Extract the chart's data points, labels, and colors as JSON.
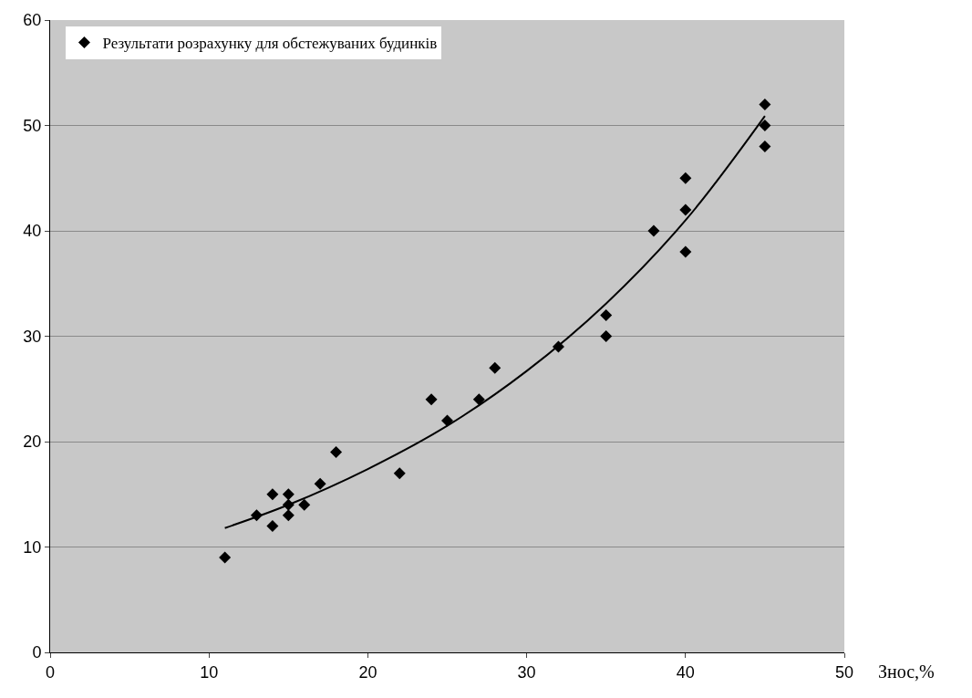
{
  "chart_data": {
    "type": "scatter",
    "xlabel": "Знос,%",
    "xlim": [
      0,
      50
    ],
    "xticks": [
      0,
      10,
      20,
      30,
      40,
      50
    ],
    "ylim": [
      0,
      60
    ],
    "yticks": [
      0,
      10,
      20,
      30,
      40,
      50,
      60
    ],
    "grid": "y",
    "legend": "top left",
    "marker": "diamond",
    "series": [
      {
        "name": "Результати розрахунку для обстежуваних будинків",
        "color": "#000000",
        "x": [
          11,
          13,
          14,
          14,
          15,
          15,
          15,
          16,
          17,
          18,
          22,
          24,
          25,
          27,
          28,
          32,
          35,
          35,
          38,
          40,
          40,
          40,
          45,
          45,
          45
        ],
        "values": [
          9,
          13,
          15,
          12,
          15,
          14,
          13,
          14,
          16,
          19,
          17,
          24,
          22,
          24,
          27,
          29,
          32,
          30,
          40,
          45,
          42,
          38,
          52,
          50,
          48
        ]
      },
      {
        "type": "line",
        "marker": "none",
        "color": "#000000",
        "x": [
          11,
          15,
          20,
          25,
          30,
          35,
          40,
          45
        ],
        "values": [
          11.8,
          14.0,
          17.4,
          21.5,
          26.7,
          33.1,
          41.0,
          50.9
        ]
      }
    ]
  }
}
